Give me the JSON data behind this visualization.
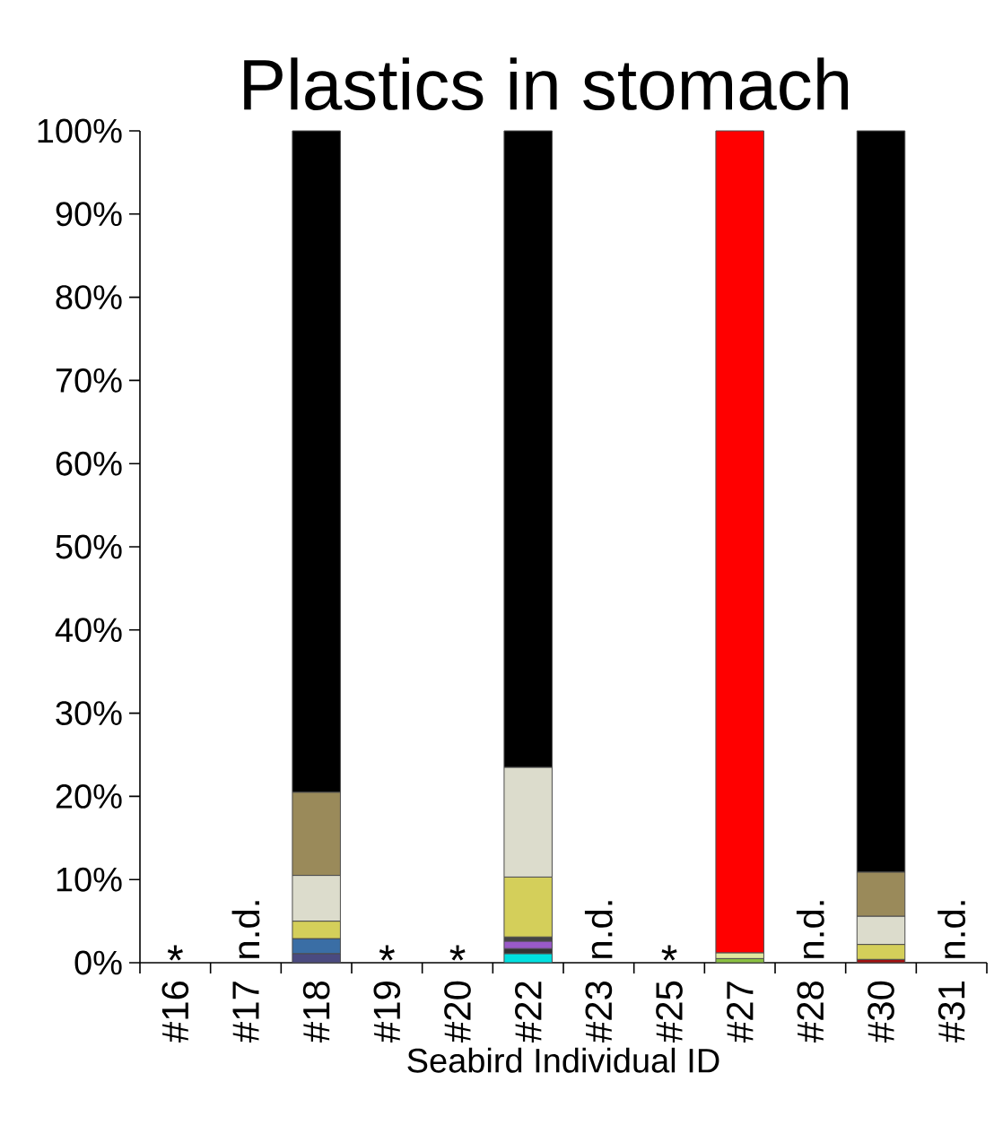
{
  "chart_data": {
    "type": "bar",
    "stacked": true,
    "title": "Plastics in stomach",
    "xlabel": "Seabird Individual ID",
    "categories": [
      "#16",
      "#17",
      "#18",
      "#19",
      "#20",
      "#22",
      "#23",
      "#25",
      "#27",
      "#28",
      "#30",
      "#31"
    ],
    "series": [
      {
        "color": "#00e0e0",
        "values": [
          null,
          null,
          null,
          null,
          null,
          1.1,
          null,
          null,
          null,
          null,
          null,
          null
        ]
      },
      {
        "color": "#a01010",
        "values": [
          null,
          null,
          null,
          null,
          null,
          null,
          null,
          null,
          null,
          null,
          0.4,
          null
        ]
      },
      {
        "color": "#8ac040",
        "values": [
          null,
          null,
          null,
          null,
          null,
          null,
          null,
          null,
          0.5,
          null,
          null,
          null
        ]
      },
      {
        "color": "#4a4a80",
        "values": [
          null,
          null,
          1.1,
          null,
          null,
          null,
          null,
          null,
          null,
          null,
          null,
          null
        ]
      },
      {
        "color": "#333333",
        "values": [
          null,
          null,
          null,
          null,
          null,
          0.6,
          null,
          null,
          null,
          null,
          null,
          null
        ]
      },
      {
        "color": "#9a5ac8",
        "values": [
          null,
          null,
          null,
          null,
          null,
          0.9,
          null,
          null,
          null,
          null,
          null,
          null
        ]
      },
      {
        "color": "#444444",
        "values": [
          null,
          null,
          null,
          null,
          null,
          0.5,
          null,
          null,
          null,
          null,
          null,
          null
        ]
      },
      {
        "color": "#e0e8a0",
        "values": [
          null,
          null,
          null,
          null,
          null,
          null,
          null,
          null,
          0.7,
          null,
          null,
          null
        ]
      },
      {
        "color": "#3a6ea5",
        "values": [
          null,
          null,
          1.8,
          null,
          null,
          null,
          null,
          null,
          null,
          null,
          null,
          null
        ]
      },
      {
        "color": "#d4cf5a",
        "values": [
          null,
          null,
          2.1,
          null,
          null,
          7.2,
          null,
          null,
          null,
          null,
          1.8,
          null
        ]
      },
      {
        "color": "#dcdccc",
        "values": [
          null,
          null,
          5.5,
          null,
          null,
          13.2,
          null,
          null,
          null,
          null,
          3.4,
          null
        ]
      },
      {
        "color": "#9a8a5a",
        "values": [
          null,
          null,
          10,
          null,
          null,
          null,
          null,
          null,
          null,
          null,
          5.3,
          null
        ]
      },
      {
        "color": "#000000",
        "values": [
          null,
          null,
          79.5,
          null,
          null,
          76.5,
          null,
          null,
          null,
          null,
          89.1,
          null
        ]
      },
      {
        "color": "#ff0000",
        "values": [
          null,
          null,
          null,
          null,
          null,
          null,
          null,
          null,
          98.8,
          null,
          null,
          null
        ]
      }
    ],
    "ylim": [
      0,
      100
    ],
    "yticks": [
      {
        "value": 0,
        "label": "0%"
      },
      {
        "value": 10,
        "label": "10%"
      },
      {
        "value": 20,
        "label": "20%"
      },
      {
        "value": 30,
        "label": "30%"
      },
      {
        "value": 40,
        "label": "40%"
      },
      {
        "value": 50,
        "label": "50%"
      },
      {
        "value": 60,
        "label": "60%"
      },
      {
        "value": 70,
        "label": "70%"
      },
      {
        "value": 80,
        "label": "80%"
      },
      {
        "value": 90,
        "label": "90%"
      },
      {
        "value": 100,
        "label": "100%"
      }
    ],
    "annotations": [
      "*",
      "n.d.",
      "*",
      "*",
      "n.d.",
      "*",
      "n.d.",
      "n.d."
    ]
  }
}
